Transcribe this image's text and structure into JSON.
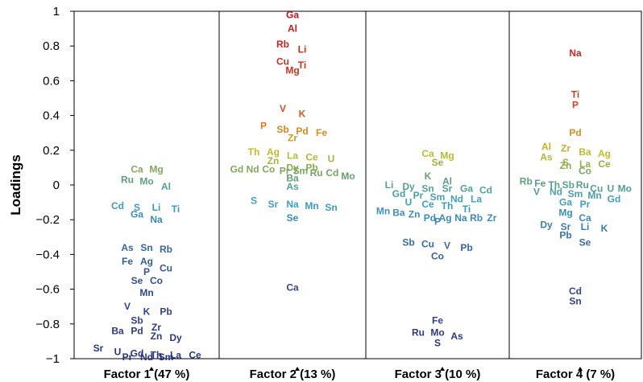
{
  "chart_data": {
    "type": "scatter",
    "ylabel": "Loadings",
    "ylim": [
      -1,
      1
    ],
    "yticks": [
      1,
      0.8,
      0.6,
      0.4,
      0.2,
      0,
      -0.2,
      -0.4,
      -0.6,
      -0.8,
      -1
    ],
    "ytick_labels": [
      "1",
      "0.8",
      "0.6",
      "0.4",
      "0.2",
      "0",
      "−0.2",
      "−0.4",
      "−0.6",
      "−0.8",
      "−1"
    ],
    "grid": false,
    "panels": [
      {
        "label": "Factor 1 (47 %)",
        "points": [
          {
            "el": "Ca",
            "y": 0.09
          },
          {
            "el": "Mg",
            "y": 0.09
          },
          {
            "el": "Mo",
            "y": 0.02
          },
          {
            "el": "Ru",
            "y": 0.03
          },
          {
            "el": "Al",
            "y": -0.01
          },
          {
            "el": "S",
            "y": -0.13
          },
          {
            "el": "Cd",
            "y": -0.12
          },
          {
            "el": "Li",
            "y": -0.13
          },
          {
            "el": "Ga",
            "y": -0.17
          },
          {
            "el": "Ti",
            "y": -0.14
          },
          {
            "el": "Na",
            "y": -0.2
          },
          {
            "el": "As",
            "y": -0.36
          },
          {
            "el": "Rb",
            "y": -0.37
          },
          {
            "el": "Sn",
            "y": -0.36
          },
          {
            "el": "Fe",
            "y": -0.44
          },
          {
            "el": "Ag",
            "y": -0.44
          },
          {
            "el": "Cu",
            "y": -0.48
          },
          {
            "el": "P",
            "y": -0.5
          },
          {
            "el": "Se",
            "y": -0.55
          },
          {
            "el": "Co",
            "y": -0.55
          },
          {
            "el": "Mn",
            "y": -0.62
          },
          {
            "el": "V",
            "y": -0.7
          },
          {
            "el": "K",
            "y": -0.73
          },
          {
            "el": "Pb",
            "y": -0.73
          },
          {
            "el": "Sb",
            "y": -0.78
          },
          {
            "el": "Zr",
            "y": -0.82
          },
          {
            "el": "Ba",
            "y": -0.84
          },
          {
            "el": "Pd",
            "y": -0.84
          },
          {
            "el": "Dy",
            "y": -0.88
          },
          {
            "el": "Zn",
            "y": -0.87
          },
          {
            "el": "Sr",
            "y": -0.94
          },
          {
            "el": "Gd",
            "y": -0.97
          },
          {
            "el": "Th",
            "y": -0.98
          },
          {
            "el": "Pr",
            "y": -0.99
          },
          {
            "el": "Nd",
            "y": -0.99
          },
          {
            "el": "Sm",
            "y": -0.99
          },
          {
            "el": "U",
            "y": -0.96
          },
          {
            "el": "La",
            "y": -0.98
          },
          {
            "el": "Ce",
            "y": -0.98
          }
        ]
      },
      {
        "label": "Factor 2 (13 %)",
        "points": [
          {
            "el": "Ga",
            "y": 0.98
          },
          {
            "el": "Al",
            "y": 0.9
          },
          {
            "el": "Rb",
            "y": 0.81
          },
          {
            "el": "Li",
            "y": 0.78
          },
          {
            "el": "Ti",
            "y": 0.69
          },
          {
            "el": "Cu",
            "y": 0.71
          },
          {
            "el": "Mg",
            "y": 0.66
          },
          {
            "el": "V",
            "y": 0.44
          },
          {
            "el": "K",
            "y": 0.41
          },
          {
            "el": "Fe",
            "y": 0.3
          },
          {
            "el": "P",
            "y": 0.34
          },
          {
            "el": "Pd",
            "y": 0.31
          },
          {
            "el": "Sb",
            "y": 0.32
          },
          {
            "el": "Zr",
            "y": 0.27
          },
          {
            "el": "Th",
            "y": 0.19
          },
          {
            "el": "Ag",
            "y": 0.19
          },
          {
            "el": "La",
            "y": 0.17
          },
          {
            "el": "Ce",
            "y": 0.16
          },
          {
            "el": "U",
            "y": 0.15
          },
          {
            "el": "Zn",
            "y": 0.14
          },
          {
            "el": "Dy",
            "y": 0.1
          },
          {
            "el": "Gd",
            "y": 0.09
          },
          {
            "el": "Nd",
            "y": 0.09
          },
          {
            "el": "Pr",
            "y": 0.08
          },
          {
            "el": "Ru",
            "y": 0.07
          },
          {
            "el": "Cd",
            "y": 0.07
          },
          {
            "el": "Pb",
            "y": 0.1
          },
          {
            "el": "Co",
            "y": 0.09
          },
          {
            "el": "Sm",
            "y": 0.08
          },
          {
            "el": "Mo",
            "y": 0.05
          },
          {
            "el": "Ba",
            "y": 0.04
          },
          {
            "el": "As",
            "y": -0.01
          },
          {
            "el": "Sr",
            "y": -0.11
          },
          {
            "el": "Mn",
            "y": -0.12
          },
          {
            "el": "S",
            "y": -0.09
          },
          {
            "el": "Sn",
            "y": -0.13
          },
          {
            "el": "Na",
            "y": -0.11
          },
          {
            "el": "Se",
            "y": -0.19
          },
          {
            "el": "Ca",
            "y": -0.59
          }
        ]
      },
      {
        "label": "Factor 3 (10 %)",
        "points": [
          {
            "el": "Mg",
            "y": 0.17
          },
          {
            "el": "Ca",
            "y": 0.18
          },
          {
            "el": "Se",
            "y": 0.13
          },
          {
            "el": "K",
            "y": 0.05
          },
          {
            "el": "Dy",
            "y": -0.01
          },
          {
            "el": "Sn",
            "y": -0.02
          },
          {
            "el": "Sr",
            "y": -0.02
          },
          {
            "el": "Al",
            "y": 0.02
          },
          {
            "el": "Li",
            "y": 0.0
          },
          {
            "el": "Ga",
            "y": -0.02
          },
          {
            "el": "Cd",
            "y": -0.03
          },
          {
            "el": "Sm",
            "y": -0.07
          },
          {
            "el": "Pr",
            "y": -0.06
          },
          {
            "el": "Nd",
            "y": -0.08
          },
          {
            "el": "Gd",
            "y": -0.05
          },
          {
            "el": "Ce",
            "y": -0.11
          },
          {
            "el": "U",
            "y": -0.1
          },
          {
            "el": "Th",
            "y": -0.12
          },
          {
            "el": "La",
            "y": -0.08
          },
          {
            "el": "Mn",
            "y": -0.15
          },
          {
            "el": "Ti",
            "y": -0.14
          },
          {
            "el": "Pd",
            "y": -0.19
          },
          {
            "el": "Ba",
            "y": -0.16
          },
          {
            "el": "Ag",
            "y": -0.19
          },
          {
            "el": "Na",
            "y": -0.19
          },
          {
            "el": "Zn",
            "y": -0.17
          },
          {
            "el": "P",
            "y": -0.21
          },
          {
            "el": "Rb",
            "y": -0.19
          },
          {
            "el": "Zr",
            "y": -0.19
          },
          {
            "el": "Sb",
            "y": -0.33
          },
          {
            "el": "Cu",
            "y": -0.34
          },
          {
            "el": "Pb",
            "y": -0.36
          },
          {
            "el": "V",
            "y": -0.35
          },
          {
            "el": "Co",
            "y": -0.41
          },
          {
            "el": "Fe",
            "y": -0.78
          },
          {
            "el": "Ru",
            "y": -0.85
          },
          {
            "el": "As",
            "y": -0.87
          },
          {
            "el": "Mo",
            "y": -0.85
          },
          {
            "el": "S",
            "y": -0.91
          }
        ]
      },
      {
        "label": "Factor 4 (7 %)",
        "points": [
          {
            "el": "Na",
            "y": 0.76
          },
          {
            "el": "Ti",
            "y": 0.52
          },
          {
            "el": "P",
            "y": 0.46
          },
          {
            "el": "Pd",
            "y": 0.3
          },
          {
            "el": "Al",
            "y": 0.22
          },
          {
            "el": "Zr",
            "y": 0.21
          },
          {
            "el": "Ba",
            "y": 0.19
          },
          {
            "el": "As",
            "y": 0.16
          },
          {
            "el": "Ag",
            "y": 0.18
          },
          {
            "el": "S",
            "y": 0.13
          },
          {
            "el": "La",
            "y": 0.12
          },
          {
            "el": "Ce",
            "y": 0.12
          },
          {
            "el": "Co",
            "y": 0.08
          },
          {
            "el": "Zn",
            "y": 0.11
          },
          {
            "el": "Rb",
            "y": 0.02
          },
          {
            "el": "Fe",
            "y": 0.01
          },
          {
            "el": "Th",
            "y": 0.0
          },
          {
            "el": "Sb",
            "y": 0.0
          },
          {
            "el": "Ru",
            "y": 0.0
          },
          {
            "el": "Cu",
            "y": -0.02
          },
          {
            "el": "U",
            "y": -0.02
          },
          {
            "el": "Mo",
            "y": -0.02
          },
          {
            "el": "Sm",
            "y": -0.05
          },
          {
            "el": "V",
            "y": -0.04
          },
          {
            "el": "Nd",
            "y": -0.04
          },
          {
            "el": "Mn",
            "y": -0.06
          },
          {
            "el": "Gd",
            "y": -0.08
          },
          {
            "el": "Ga",
            "y": -0.1
          },
          {
            "el": "Pr",
            "y": -0.11
          },
          {
            "el": "Mg",
            "y": -0.16
          },
          {
            "el": "Ca",
            "y": -0.19
          },
          {
            "el": "Sr",
            "y": -0.24
          },
          {
            "el": "K",
            "y": -0.25
          },
          {
            "el": "Li",
            "y": -0.24
          },
          {
            "el": "Dy",
            "y": -0.23
          },
          {
            "el": "Pb",
            "y": -0.29
          },
          {
            "el": "Se",
            "y": -0.33
          },
          {
            "el": "Cd",
            "y": -0.61
          },
          {
            "el": "Sn",
            "y": -0.67
          }
        ]
      }
    ]
  }
}
